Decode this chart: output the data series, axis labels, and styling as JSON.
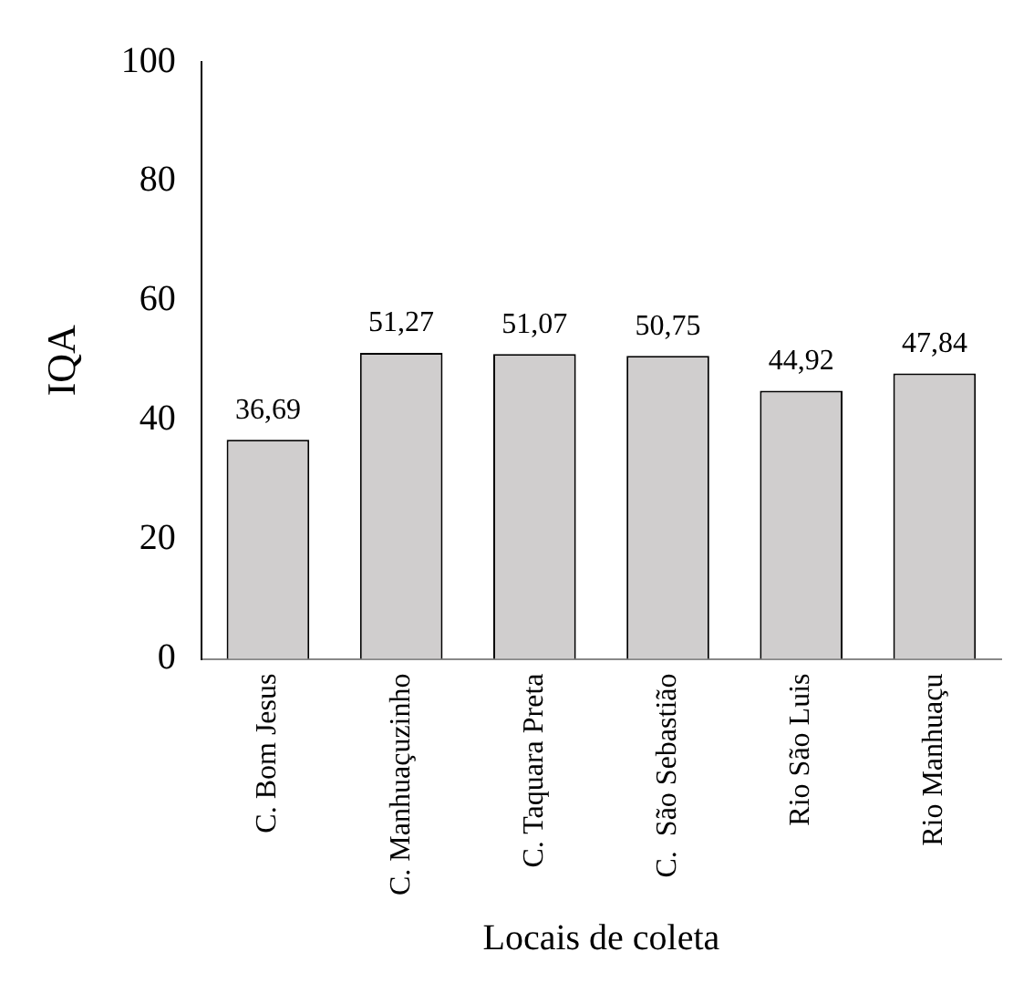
{
  "chart_data": {
    "type": "bar",
    "xlabel": "Locais de coleta",
    "ylabel": "IQA",
    "categories": [
      "C. Bom Jesus",
      "C. Manhuaçuzinho",
      "C. Taquara Preta",
      "C.  São Sebastião",
      "Rio São Luis",
      "Rio Manhuaçu"
    ],
    "values": [
      36.69,
      51.27,
      51.07,
      50.75,
      44.92,
      47.84
    ],
    "value_labels": [
      "36,69",
      "51,27",
      "51,07",
      "50,75",
      "44,92",
      "47,84"
    ],
    "color": "#d0cece",
    "ylim": [
      0,
      100
    ],
    "yticks": [
      0,
      20,
      40,
      60,
      80,
      100
    ],
    "grid": false,
    "legend": false
  }
}
